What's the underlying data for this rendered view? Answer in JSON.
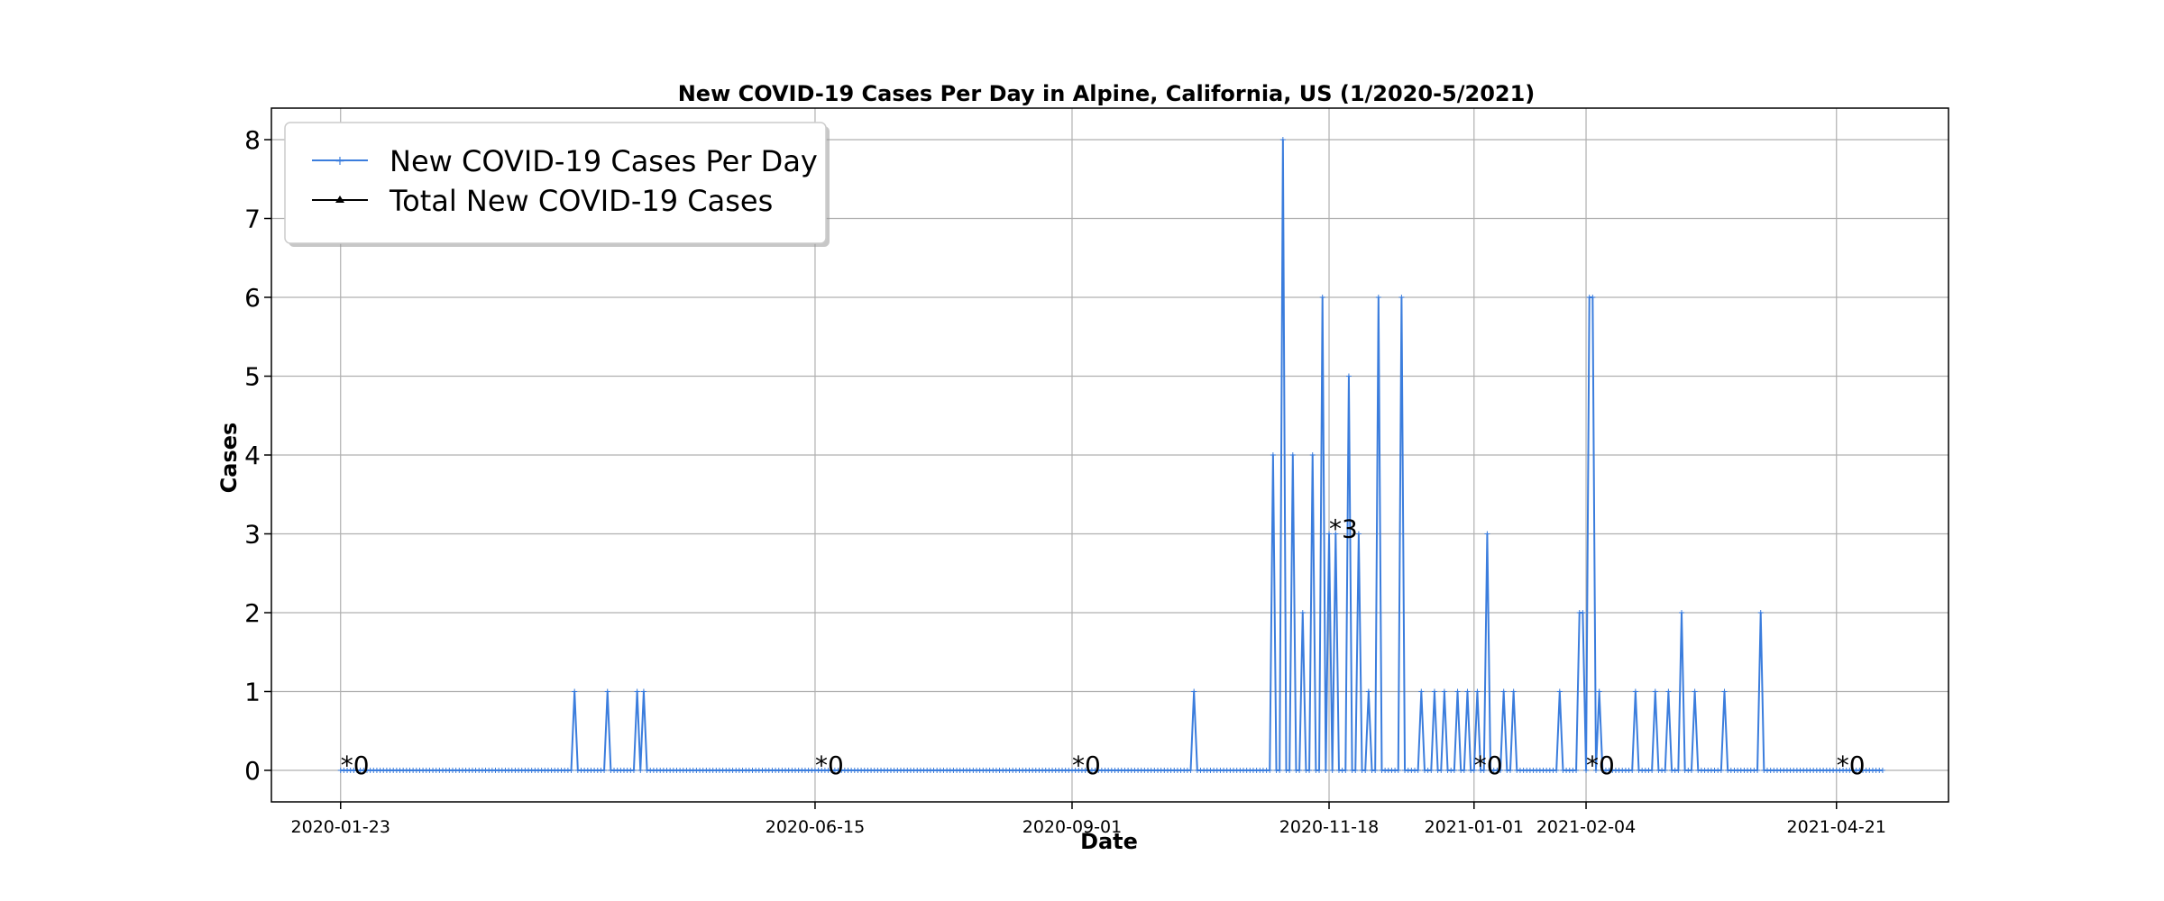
{
  "chart_data": {
    "type": "line",
    "title": "New COVID-19 Cases Per Day in Alpine, California, US (1/2020-5/2021)",
    "xlabel": "Date",
    "ylabel": "Cases",
    "ylim": [
      -0.4,
      8.4
    ],
    "yticks": [
      0,
      1,
      2,
      3,
      4,
      5,
      6,
      7,
      8
    ],
    "x_start": "2020-01-23",
    "x_end": "2021-05-05",
    "xlim": [
      "2020-01-02",
      "2021-05-25"
    ],
    "xticks": [
      "2020-01-23",
      "2020-06-15",
      "2020-09-01",
      "2020-11-18",
      "2021-01-01",
      "2021-02-04",
      "2021-04-21"
    ],
    "grid": true,
    "legend_position": "top-left",
    "colors": {
      "series": "#3b7ddd",
      "total": "#000000",
      "grid": "#b0b0b0"
    },
    "series": [
      {
        "name": "New COVID-19 Cases Per Day",
        "default": 0,
        "values": [
          [
            "2020-04-03",
            1
          ],
          [
            "2020-04-13",
            1
          ],
          [
            "2020-04-22",
            1
          ],
          [
            "2020-04-24",
            1
          ],
          [
            "2020-10-08",
            1
          ],
          [
            "2020-11-01",
            4
          ],
          [
            "2020-11-04",
            8
          ],
          [
            "2020-11-07",
            4
          ],
          [
            "2020-11-10",
            2
          ],
          [
            "2020-11-13",
            4
          ],
          [
            "2020-11-16",
            6
          ],
          [
            "2020-11-18",
            3
          ],
          [
            "2020-11-20",
            3
          ],
          [
            "2020-11-24",
            5
          ],
          [
            "2020-11-27",
            3
          ],
          [
            "2020-11-30",
            1
          ],
          [
            "2020-12-03",
            6
          ],
          [
            "2020-12-10",
            6
          ],
          [
            "2020-12-16",
            1
          ],
          [
            "2020-12-20",
            1
          ],
          [
            "2020-12-23",
            1
          ],
          [
            "2020-12-27",
            1
          ],
          [
            "2020-12-30",
            1
          ],
          [
            "2021-01-02",
            1
          ],
          [
            "2021-01-05",
            3
          ],
          [
            "2021-01-10",
            1
          ],
          [
            "2021-01-13",
            1
          ],
          [
            "2021-01-27",
            1
          ],
          [
            "2021-02-02",
            2
          ],
          [
            "2021-02-03",
            2
          ],
          [
            "2021-02-05",
            6
          ],
          [
            "2021-02-06",
            6
          ],
          [
            "2021-02-08",
            1
          ],
          [
            "2021-02-19",
            1
          ],
          [
            "2021-02-25",
            1
          ],
          [
            "2021-03-01",
            1
          ],
          [
            "2021-03-05",
            2
          ],
          [
            "2021-03-09",
            1
          ],
          [
            "2021-03-18",
            1
          ],
          [
            "2021-03-29",
            2
          ]
        ]
      },
      {
        "name": "Total New COVID-19 Cases",
        "values": []
      }
    ],
    "annotations": [
      {
        "date": "2020-01-23",
        "value": 0,
        "text": "*0"
      },
      {
        "date": "2020-06-15",
        "value": 0,
        "text": "*0"
      },
      {
        "date": "2020-09-01",
        "value": 0,
        "text": "*0"
      },
      {
        "date": "2020-11-18",
        "value": 3,
        "text": "*3"
      },
      {
        "date": "2021-01-01",
        "value": 0,
        "text": "*0"
      },
      {
        "date": "2021-02-04",
        "value": 0,
        "text": "*0"
      },
      {
        "date": "2021-04-21",
        "value": 0,
        "text": "*0"
      }
    ]
  }
}
